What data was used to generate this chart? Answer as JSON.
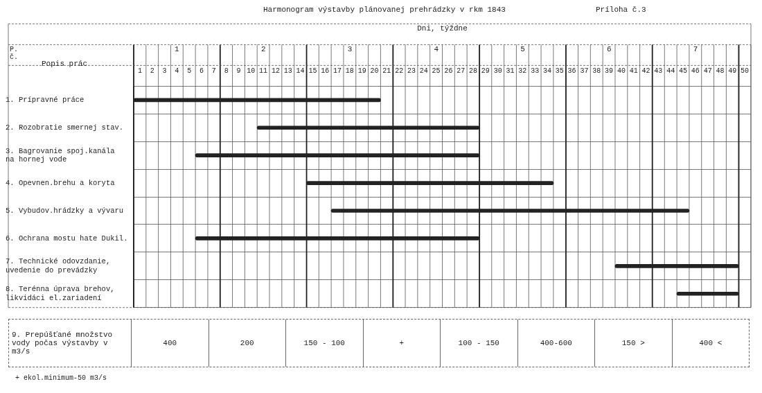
{
  "chart_data": {
    "type": "bar",
    "orientation": "horizontal",
    "title": "Harmonogram výstavby plánovanej prehrádzky v rkm 1843",
    "xlabel": "Dni, týždne",
    "ylabel": "Popis prác",
    "categories": [
      "1. Prípravné práce",
      "2. Rozobratie smernej stav.",
      "3. Bagrovanie spoj.kanála\nna hornej vode",
      "4. Opevnen.brehu a koryta",
      "5. Vybudov.hrádzky a vývaru",
      "6. Ochrana mostu hate Dukil.",
      "7. Technické odovzdanie,\nuvedenie do prevádzky",
      "8. Terénna úprava brehov,\nlikvidáci el.zariadení"
    ],
    "base": [
      0.5,
      10.5,
      5.5,
      14.5,
      16.5,
      5.5,
      39.5,
      44.5
    ],
    "values": [
      20,
      18,
      23,
      20,
      29,
      23,
      10,
      5
    ],
    "color": "#222222",
    "xlim": [
      0.5,
      50.5
    ],
    "xticks": [
      1,
      2,
      3,
      4,
      5,
      6,
      7,
      8,
      9,
      10,
      11,
      12,
      13,
      14,
      15,
      16,
      17,
      18,
      19,
      20,
      21,
      22,
      23,
      24,
      25,
      26,
      27,
      28,
      29,
      30,
      31,
      32,
      33,
      34,
      35,
      36,
      37,
      38,
      39,
      40,
      41,
      42,
      43,
      44,
      45,
      46,
      47,
      48,
      49,
      50
    ],
    "x2lim": [
      0.5,
      7.64
    ],
    "x2ticks": [
      {
        "value": 0.5,
        "label": null
      },
      1,
      {
        "value": 1.5,
        "label": null
      },
      2,
      {
        "value": 2.5,
        "label": null
      },
      3,
      {
        "value": 3.5,
        "label": null
      },
      4,
      {
        "value": 4.5,
        "label": null
      },
      5,
      {
        "value": 5.5,
        "label": null
      },
      6,
      {
        "value": 6.5,
        "label": null
      },
      7,
      {
        "value": 7.5,
        "label": null
      }
    ],
    "grid": true,
    "legend": false,
    "annotations": [
      "P. č.",
      "Príloha č.3",
      "9. Prepúšťané množstvo vody počas výstavby v m3/s",
      "400",
      "200",
      "150 - 100",
      "+",
      "100 - 150",
      "400-600",
      "150 >",
      "400 <",
      "+ ekol.minimum-50 m3/s"
    ]
  }
}
